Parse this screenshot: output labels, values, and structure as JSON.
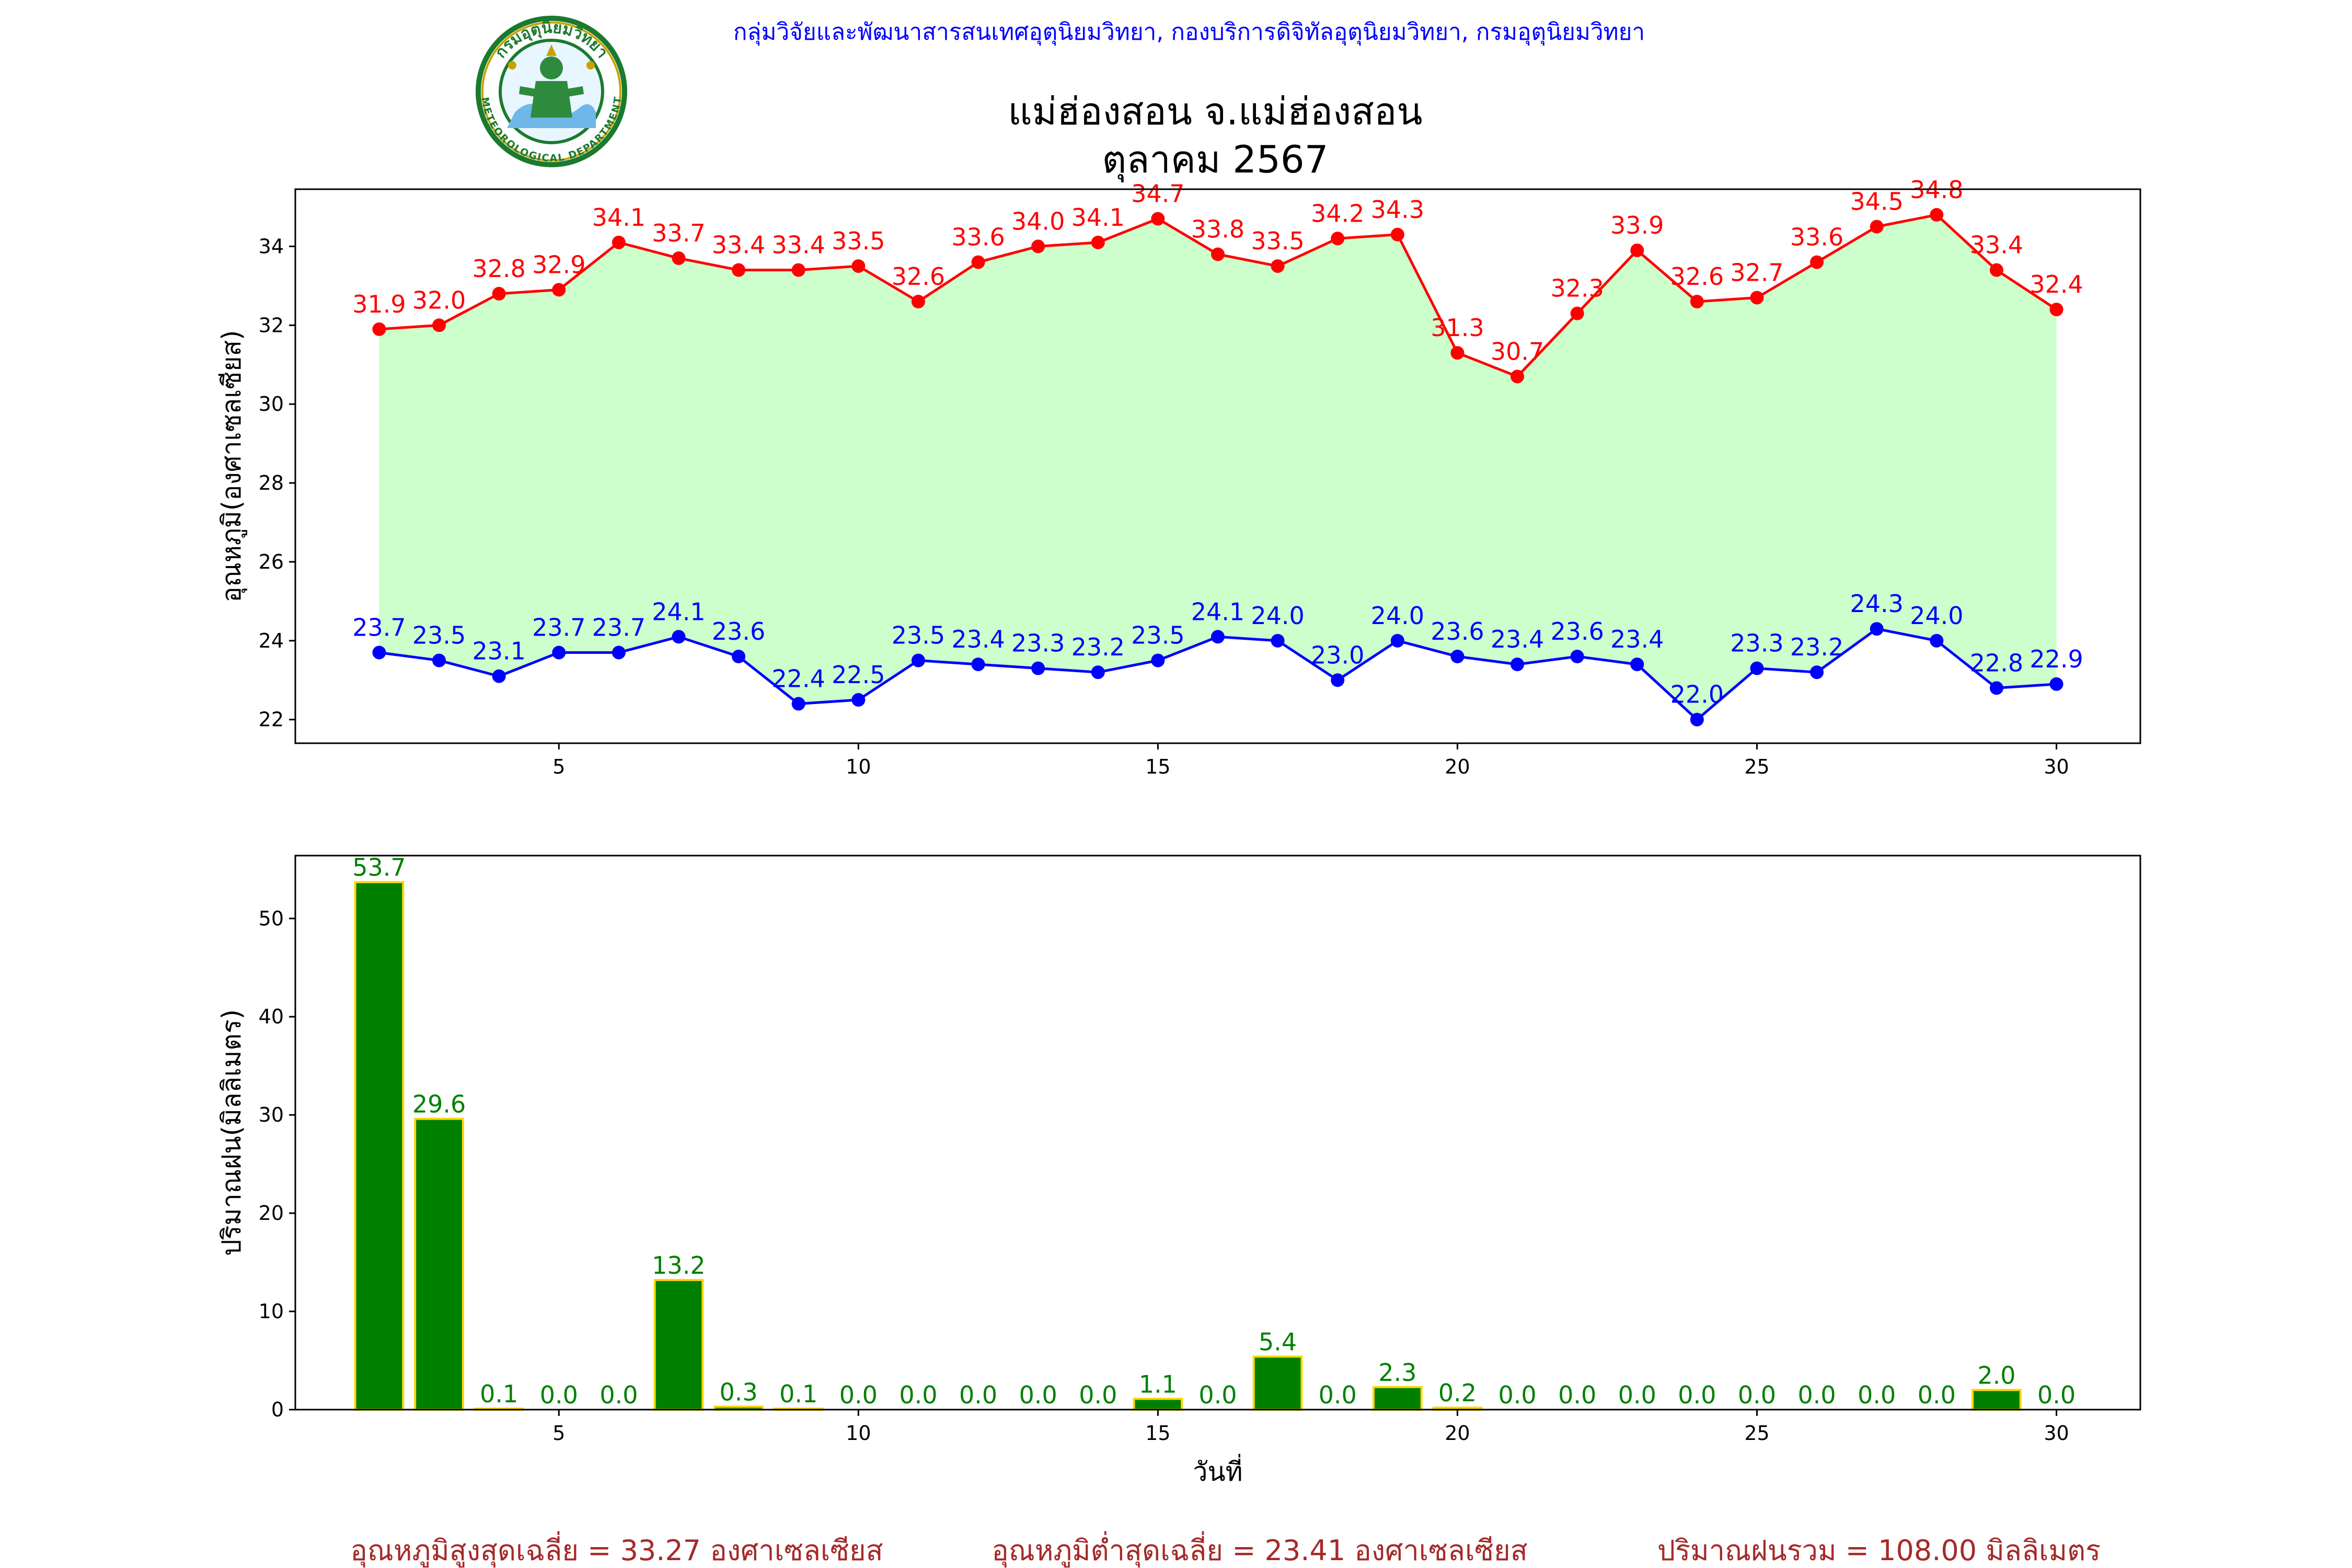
{
  "header": {
    "org_line": "กลุ่มวิจัยและพัฒนาสารสนเทศอุตุนิยมวิทยา, กองบริการดิจิทัลอุตุนิยมวิทยา, กรมอุตุนิยมวิทยา",
    "org_color": "#0000ff",
    "logo_top_text": "กรมอุตุนิยมวิทยา",
    "logo_bottom_text": "METEOROLOGICAL DEPARTMENT",
    "title_line1": "แม่ฮ่องสอน จ.แม่ฮ่องสอน",
    "title_line2": "ตุลาคม 2567"
  },
  "footer": {
    "avg_max": "อุณหภูมิสูงสุดเฉลี่ย = 33.27 องศาเซลเซียส",
    "avg_min": "อุณหภูมิต่ำสุดเฉลี่ย = 23.41 องศาเซลเซียส",
    "total_rain": "ปริมาณฝนรวม = 108.00 มิลลิเมตร",
    "color": "#a52a2a"
  },
  "chart_data": [
    {
      "type": "line",
      "ylabel": "อุณหภูมิ(องศาเซลเซียส)",
      "xlabel": "",
      "x": [
        2,
        3,
        4,
        5,
        6,
        7,
        8,
        9,
        10,
        11,
        12,
        13,
        14,
        15,
        16,
        17,
        18,
        19,
        20,
        21,
        22,
        23,
        24,
        25,
        26,
        27,
        28,
        29,
        30
      ],
      "xlim": [
        0.6,
        31.4
      ],
      "ylim": [
        21.4,
        35.45
      ],
      "xticks": [
        5,
        10,
        15,
        20,
        25,
        30
      ],
      "yticks": [
        22,
        24,
        26,
        28,
        30,
        32,
        34
      ],
      "fill_between": true,
      "fill_color": "#ccffcc",
      "series": [
        {
          "color": "#ff0000",
          "values": [
            31.9,
            32.0,
            32.8,
            32.9,
            34.1,
            33.7,
            33.4,
            33.4,
            33.5,
            32.6,
            33.6,
            34.0,
            34.1,
            34.7,
            33.8,
            33.5,
            34.2,
            34.3,
            31.3,
            30.7,
            32.3,
            33.9,
            32.6,
            32.7,
            33.6,
            34.5,
            34.8,
            33.4,
            32.4
          ]
        },
        {
          "color": "#0000ff",
          "values": [
            23.7,
            23.5,
            23.1,
            23.7,
            23.7,
            24.1,
            23.6,
            22.4,
            22.5,
            23.5,
            23.4,
            23.3,
            23.2,
            23.5,
            24.1,
            24.0,
            23.0,
            24.0,
            23.6,
            23.4,
            23.6,
            23.4,
            22.0,
            23.3,
            23.2,
            24.3,
            24.0,
            22.8,
            22.9
          ]
        }
      ]
    },
    {
      "type": "bar",
      "ylabel": "ปริมาณฝน(มิลลิเมตร)",
      "xlabel": "วันที่",
      "x": [
        2,
        3,
        4,
        5,
        6,
        7,
        8,
        9,
        10,
        11,
        12,
        13,
        14,
        15,
        16,
        17,
        18,
        19,
        20,
        21,
        22,
        23,
        24,
        25,
        26,
        27,
        28,
        29,
        30
      ],
      "values": [
        53.7,
        29.6,
        0.1,
        0.0,
        0.0,
        13.2,
        0.3,
        0.1,
        0.0,
        0.0,
        0.0,
        0.0,
        0.0,
        1.1,
        0.0,
        5.4,
        0.0,
        2.3,
        0.2,
        0.0,
        0.0,
        0.0,
        0.0,
        0.0,
        0.0,
        0.0,
        0.0,
        2.0,
        0.0
      ],
      "xlim": [
        0.6,
        31.4
      ],
      "ylim": [
        0,
        56.4
      ],
      "xticks": [
        5,
        10,
        15,
        20,
        25,
        30
      ],
      "yticks": [
        0,
        10,
        20,
        30,
        40,
        50
      ],
      "bar_color": "#008000",
      "edge_color": "#ffd700",
      "label_color": "#008000"
    }
  ]
}
